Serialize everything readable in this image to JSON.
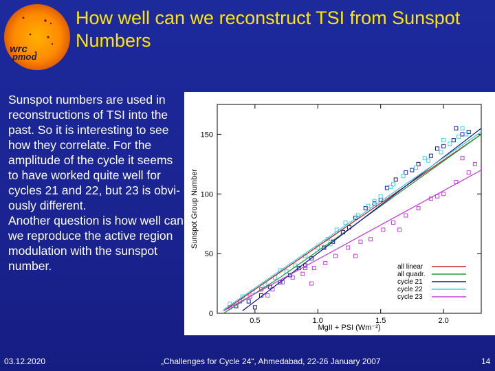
{
  "slide": {
    "title": "How well can we reconstruct TSI from Sunspot Numbers",
    "paragraphs": [
      "Sunspot numbers are used in reconstructions of TSI into the past. So it is interesting to see how  they correlate. For the amplitude of the cycle it seems to have worked quite well for cycles 21 and 22, but 23 is obvi-ously different.",
      "Another question is how well can we reproduce the active region modulation with the sunspot number."
    ],
    "logo_text": "pmod wrc"
  },
  "footer": {
    "date": "03.12.2020",
    "event": "„Challenges for Cycle 24“, Ahmedabad, 22-26 January 2007",
    "page": "14"
  },
  "colors": {
    "background": "#1d2a9c",
    "title": "#ffe600",
    "text": "#ffffff",
    "all_linear": "#c8202a",
    "all_quadr": "#1f9a3a",
    "cycle21": "#1a1a8c",
    "cycle22": "#3fd0e0",
    "cycle23": "#c040d8"
  },
  "chart_data": {
    "type": "scatter",
    "xlabel": "MgII + PSI (Wm⁻²)",
    "ylabel": "Sunspot Group Number",
    "xlim": [
      0.2,
      2.3
    ],
    "ylim": [
      0,
      175
    ],
    "xticks": [
      0.5,
      1.0,
      1.5,
      2.0
    ],
    "xtick_labels": [
      "0.5",
      "1.0",
      "1.5",
      "2.0"
    ],
    "yticks": [
      0,
      50,
      100,
      150
    ],
    "ytick_labels": [
      "0",
      "50",
      "100",
      "150"
    ],
    "legend_position": "bottom-right",
    "series": [
      {
        "name": "all linear",
        "kind": "line",
        "color": "#c8202a",
        "x": [
          0.25,
          2.3
        ],
        "y": [
          2,
          150
        ]
      },
      {
        "name": "all quadr.",
        "kind": "line",
        "color": "#1f9a3a",
        "x": [
          0.25,
          0.7,
          1.2,
          1.7,
          2.3
        ],
        "y": [
          0,
          30,
          67,
          105,
          150
        ]
      },
      {
        "name": "cycle 21",
        "kind": "line",
        "color": "#1a1a8c",
        "x": [
          0.4,
          2.3
        ],
        "y": [
          2,
          155
        ]
      },
      {
        "name": "cycle 22",
        "kind": "line",
        "color": "#3fd0e0",
        "x": [
          0.25,
          2.3
        ],
        "y": [
          3,
          152
        ]
      },
      {
        "name": "cycle 23",
        "kind": "line",
        "color": "#c040d8",
        "x": [
          0.25,
          2.3
        ],
        "y": [
          2,
          120
        ]
      }
    ],
    "points": [
      {
        "series": "cycle 21",
        "color": "#1a1a8c",
        "x": [
          0.35,
          0.45,
          0.55,
          0.62,
          0.7,
          0.78,
          0.85,
          0.95,
          1.05,
          1.12,
          1.2,
          1.3,
          1.38,
          1.45,
          1.55,
          1.62,
          1.7,
          1.8,
          1.9,
          2.0,
          2.08,
          2.15,
          2.2,
          0.5,
          0.9,
          1.25,
          1.5,
          1.75,
          1.95,
          2.1
        ],
        "y": [
          6,
          10,
          15,
          22,
          26,
          32,
          38,
          46,
          55,
          60,
          68,
          80,
          88,
          92,
          105,
          112,
          118,
          125,
          132,
          140,
          145,
          150,
          152,
          5,
          40,
          72,
          95,
          120,
          138,
          155
        ]
      },
      {
        "series": "cycle 22",
        "color": "#3fd0e0",
        "x": [
          0.3,
          0.4,
          0.48,
          0.58,
          0.66,
          0.75,
          0.82,
          0.9,
          1.0,
          1.08,
          1.15,
          1.22,
          1.32,
          1.4,
          1.5,
          1.58,
          1.68,
          1.78,
          1.88,
          1.98,
          2.05,
          2.12,
          2.18,
          0.7,
          1.1,
          1.45,
          1.85,
          2.0,
          2.15,
          1.6
        ],
        "y": [
          8,
          14,
          18,
          24,
          30,
          35,
          40,
          48,
          55,
          62,
          70,
          76,
          82,
          90,
          98,
          106,
          115,
          122,
          128,
          135,
          142,
          148,
          150,
          36,
          58,
          94,
          130,
          145,
          155,
          108
        ]
      },
      {
        "series": "cycle 23",
        "color": "#c040d8",
        "x": [
          0.3,
          0.38,
          0.46,
          0.55,
          0.64,
          0.72,
          0.8,
          0.88,
          0.97,
          1.06,
          1.14,
          1.24,
          1.34,
          1.42,
          1.52,
          1.6,
          1.7,
          1.8,
          1.9,
          2.0,
          2.1,
          2.2,
          2.25,
          0.6,
          0.95,
          1.3,
          1.65,
          1.95,
          2.15,
          0.9
        ],
        "y": [
          5,
          10,
          14,
          20,
          20,
          26,
          30,
          33,
          38,
          42,
          48,
          55,
          60,
          62,
          70,
          76,
          82,
          88,
          96,
          100,
          110,
          118,
          125,
          15,
          25,
          48,
          70,
          98,
          130,
          38
        ]
      }
    ]
  }
}
